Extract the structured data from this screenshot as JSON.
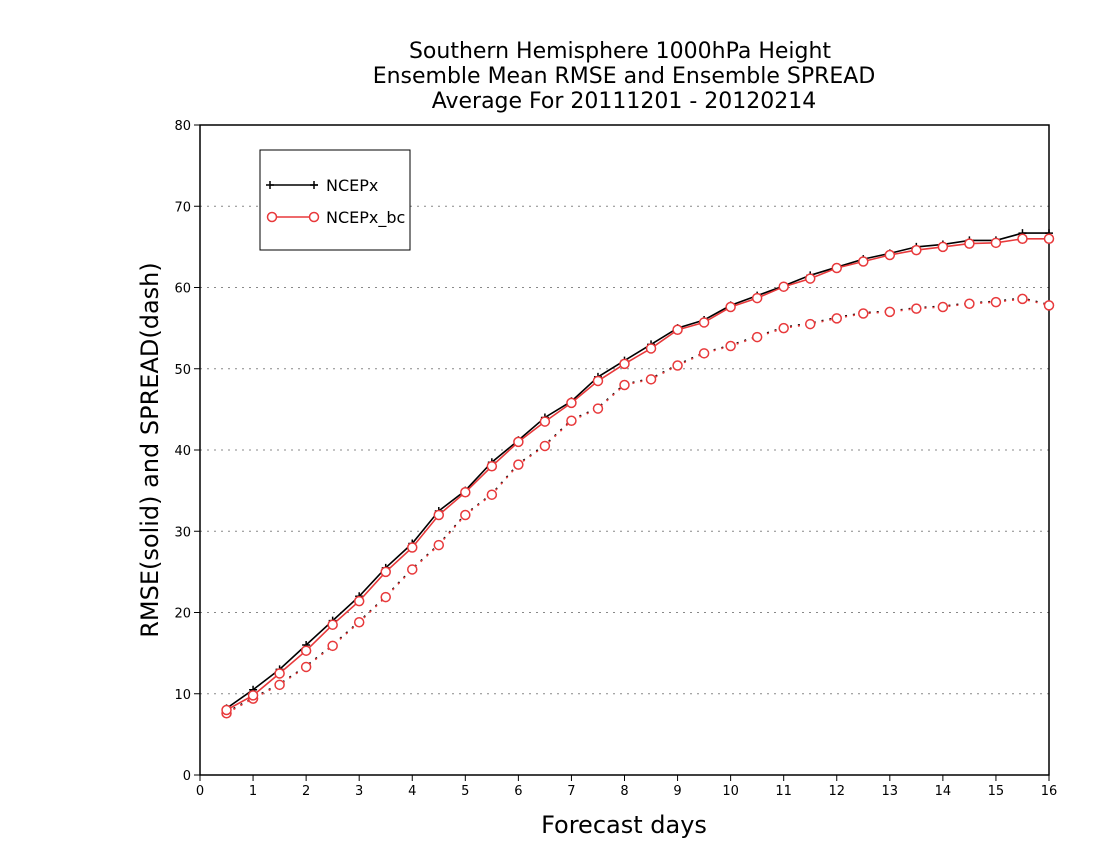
{
  "chart_data": {
    "type": "line",
    "title": [
      "Southern Hemisphere 1000hPa Height",
      "Ensemble Mean RMSE and Ensemble SPREAD",
      "Average For 20111201 - 20120214"
    ],
    "xlabel": "Forecast days",
    "ylabel": "RMSE(solid) and SPREAD(dash)",
    "xlim": [
      0,
      16
    ],
    "ylim": [
      0,
      80
    ],
    "x_ticks": [
      0,
      1,
      2,
      3,
      4,
      5,
      6,
      7,
      8,
      9,
      10,
      11,
      12,
      13,
      14,
      15,
      16
    ],
    "y_ticks": [
      0,
      10,
      20,
      30,
      40,
      50,
      60,
      70,
      80
    ],
    "grid": "horizontal dotted",
    "legend_position": "top-left",
    "x": [
      0.5,
      1,
      1.5,
      2,
      2.5,
      3,
      3.5,
      4,
      4.5,
      5,
      5.5,
      6,
      6.5,
      7,
      7.5,
      8,
      8.5,
      9,
      9.5,
      10,
      10.5,
      11,
      11.5,
      12,
      12.5,
      13,
      13.5,
      14,
      14.5,
      15,
      15.5,
      16
    ],
    "series": [
      {
        "name": "NCEPx",
        "color": "#000000",
        "marker": "plus",
        "style": "solid",
        "values": [
          8.2,
          10.5,
          13.0,
          16.0,
          19.0,
          22.0,
          25.5,
          28.5,
          32.5,
          35.0,
          38.5,
          41.2,
          44.0,
          46.0,
          49.0,
          51.0,
          53.0,
          55.0,
          56.0,
          57.8,
          59.0,
          60.2,
          61.5,
          62.5,
          63.5,
          64.2,
          65.0,
          65.3,
          65.8,
          65.8,
          66.7,
          66.7
        ]
      },
      {
        "name": "NCEPx_bc",
        "color": "#e8393b",
        "marker": "circle",
        "style": "solid",
        "values": [
          8.0,
          9.8,
          12.5,
          15.3,
          18.5,
          21.4,
          25.0,
          28.0,
          32.0,
          34.8,
          38.0,
          41.0,
          43.5,
          45.8,
          48.5,
          50.6,
          52.5,
          54.8,
          55.7,
          57.6,
          58.7,
          60.1,
          61.1,
          62.4,
          63.2,
          64.0,
          64.6,
          65.0,
          65.4,
          65.5,
          66.0,
          66.0
        ]
      },
      {
        "name": "",
        "color": "#e8393b",
        "marker": "circle",
        "style": "dotted",
        "values": [
          7.6,
          9.4,
          11.1,
          13.3,
          15.9,
          18.8,
          21.9,
          25.3,
          28.3,
          32.0,
          34.5,
          38.2,
          40.5,
          43.6,
          45.1,
          48.0,
          48.7,
          50.4,
          51.9,
          52.8,
          53.9,
          55.0,
          55.5,
          56.2,
          56.8,
          57.0,
          57.4,
          57.6,
          58.0,
          58.2,
          58.6,
          57.8
        ]
      },
      {
        "name": "",
        "color": "#000000",
        "marker": "plus",
        "style": "dotted",
        "values": [
          7.7,
          9.5,
          11.2,
          13.4,
          16.0,
          18.9,
          22.0,
          25.4,
          28.4,
          32.1,
          34.6,
          38.3,
          40.6,
          43.7,
          45.2,
          48.1,
          48.8,
          50.5,
          52.0,
          52.9,
          54.0,
          55.1,
          55.6,
          56.3,
          56.9,
          57.1,
          57.5,
          57.7,
          58.1,
          58.3,
          58.7,
          57.9
        ]
      }
    ]
  }
}
